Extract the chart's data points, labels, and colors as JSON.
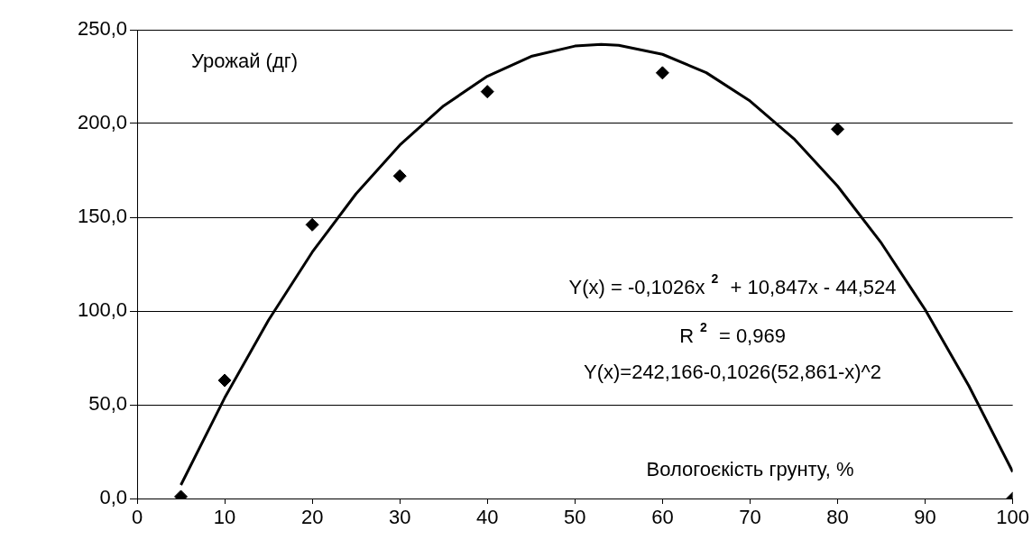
{
  "chart_data": {
    "type": "scatter",
    "xlabel": "Вологоєкість грунту, %",
    "ylabel": "Урожай (дг)",
    "x": [
      5,
      10,
      20,
      30,
      40,
      60,
      80,
      100
    ],
    "series": [
      {
        "type": "scatter",
        "color": "#000000",
        "values": [
          1,
          63,
          146,
          172,
          217,
          227,
          197,
          0
        ],
        "marker": "diamond"
      },
      {
        "type": "line",
        "color": "#000000",
        "marker": "none",
        "x": [
          5,
          10,
          15,
          20,
          25,
          30,
          35,
          40,
          45,
          50,
          53,
          55,
          60,
          65,
          70,
          75,
          80,
          85,
          90,
          95,
          100
        ],
        "values": [
          7.2,
          53.7,
          95.1,
          131.4,
          162.5,
          188.5,
          209.4,
          225.2,
          235.8,
          241.3,
          242.2,
          241.7,
          236.9,
          227.1,
          212.0,
          191.9,
          166.6,
          136.2,
          100.7,
          60.0,
          14.2
        ]
      }
    ],
    "xlim": [
      0,
      100
    ],
    "xticks": [
      0,
      10,
      20,
      30,
      40,
      50,
      60,
      70,
      80,
      90,
      100
    ],
    "ylim": [
      0,
      250
    ],
    "yticks": [
      {
        "value": 0,
        "label": "0,0"
      },
      {
        "value": 50,
        "label": "50,0"
      },
      {
        "value": 100,
        "label": "100,0"
      },
      {
        "value": 150,
        "label": "150,0"
      },
      {
        "value": 200,
        "label": "200,0"
      },
      {
        "value": 250,
        "label": "250,0"
      }
    ],
    "grid": "y",
    "legend": false,
    "annotations": [
      "Y(x) = -0,1026x$^{2}$ + 10,847x - 44,524",
      "R$^{2}$ = 0,969",
      "Y(x)=242,166-0,1026(52,861-x)^2"
    ]
  }
}
